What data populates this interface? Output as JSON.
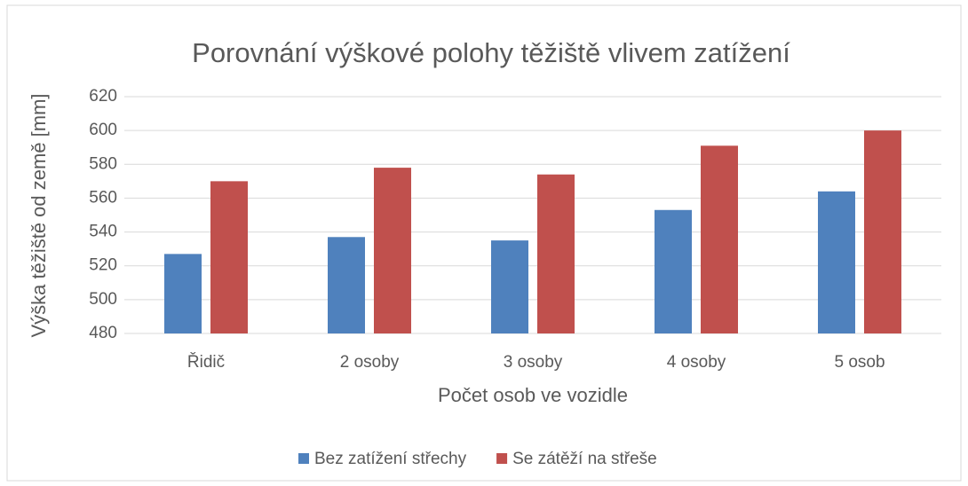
{
  "chart_data": {
    "type": "bar",
    "title": "Porovnání výškové polohy těžiště vlivem zatížení",
    "x_label": "Počet osob ve vozidle",
    "y_label": "Výška těžiště od země [mm]",
    "categories": [
      "Řidič",
      "2 osoby",
      "3 osoby",
      "4 osoby",
      "5 osob"
    ],
    "series": [
      {
        "name": "Bez zatížení střechy",
        "color": "#4f81bd",
        "values": [
          527,
          537,
          535,
          553,
          564
        ]
      },
      {
        "name": "Se zátěží na střeše",
        "color": "#c0504d",
        "values": [
          570,
          578,
          574,
          591,
          600
        ]
      }
    ],
    "ylim": [
      480,
      620
    ],
    "yticks": [
      480,
      500,
      520,
      540,
      560,
      580,
      600,
      620
    ],
    "grid": true,
    "legend": "bottom"
  }
}
